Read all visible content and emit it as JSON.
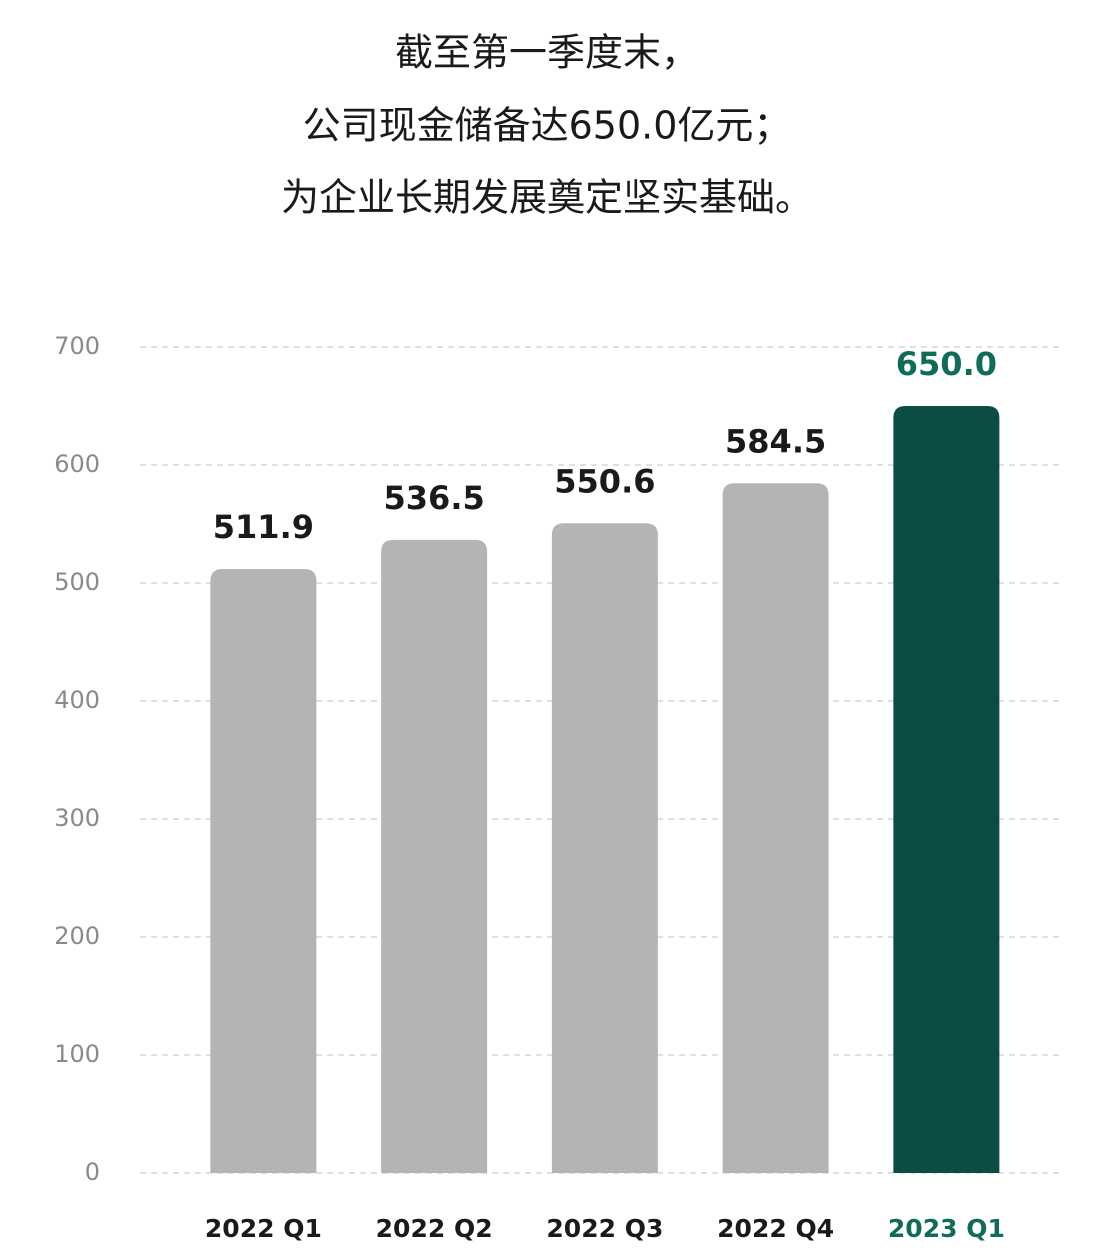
{
  "chart_data": {
    "type": "bar",
    "title_lines": [
      "截至第一季度末，",
      "公司现金储备达650.0亿元；",
      "为企业长期发展奠定坚实基础。"
    ],
    "categories": [
      "2022 Q1",
      "2022 Q2",
      "2022 Q3",
      "2022 Q4",
      "2023 Q1"
    ],
    "values": [
      511.9,
      536.5,
      550.6,
      584.5,
      650
    ],
    "value_labels": [
      "511.9",
      "536.5",
      "550.6",
      "584.5",
      "650.0"
    ],
    "colors": [
      "#b4b4b4",
      "#b4b4b4",
      "#b4b4b4",
      "#b4b4b4",
      "#0b4d44"
    ],
    "label_colors": [
      "#1a1a1a",
      "#1a1a1a",
      "#1a1a1a",
      "#1a1a1a",
      "#0f6b5a"
    ],
    "ylim": [
      0,
      700
    ],
    "yticks": [
      0,
      100,
      200,
      300,
      400,
      500,
      600,
      700
    ],
    "grid": true
  }
}
